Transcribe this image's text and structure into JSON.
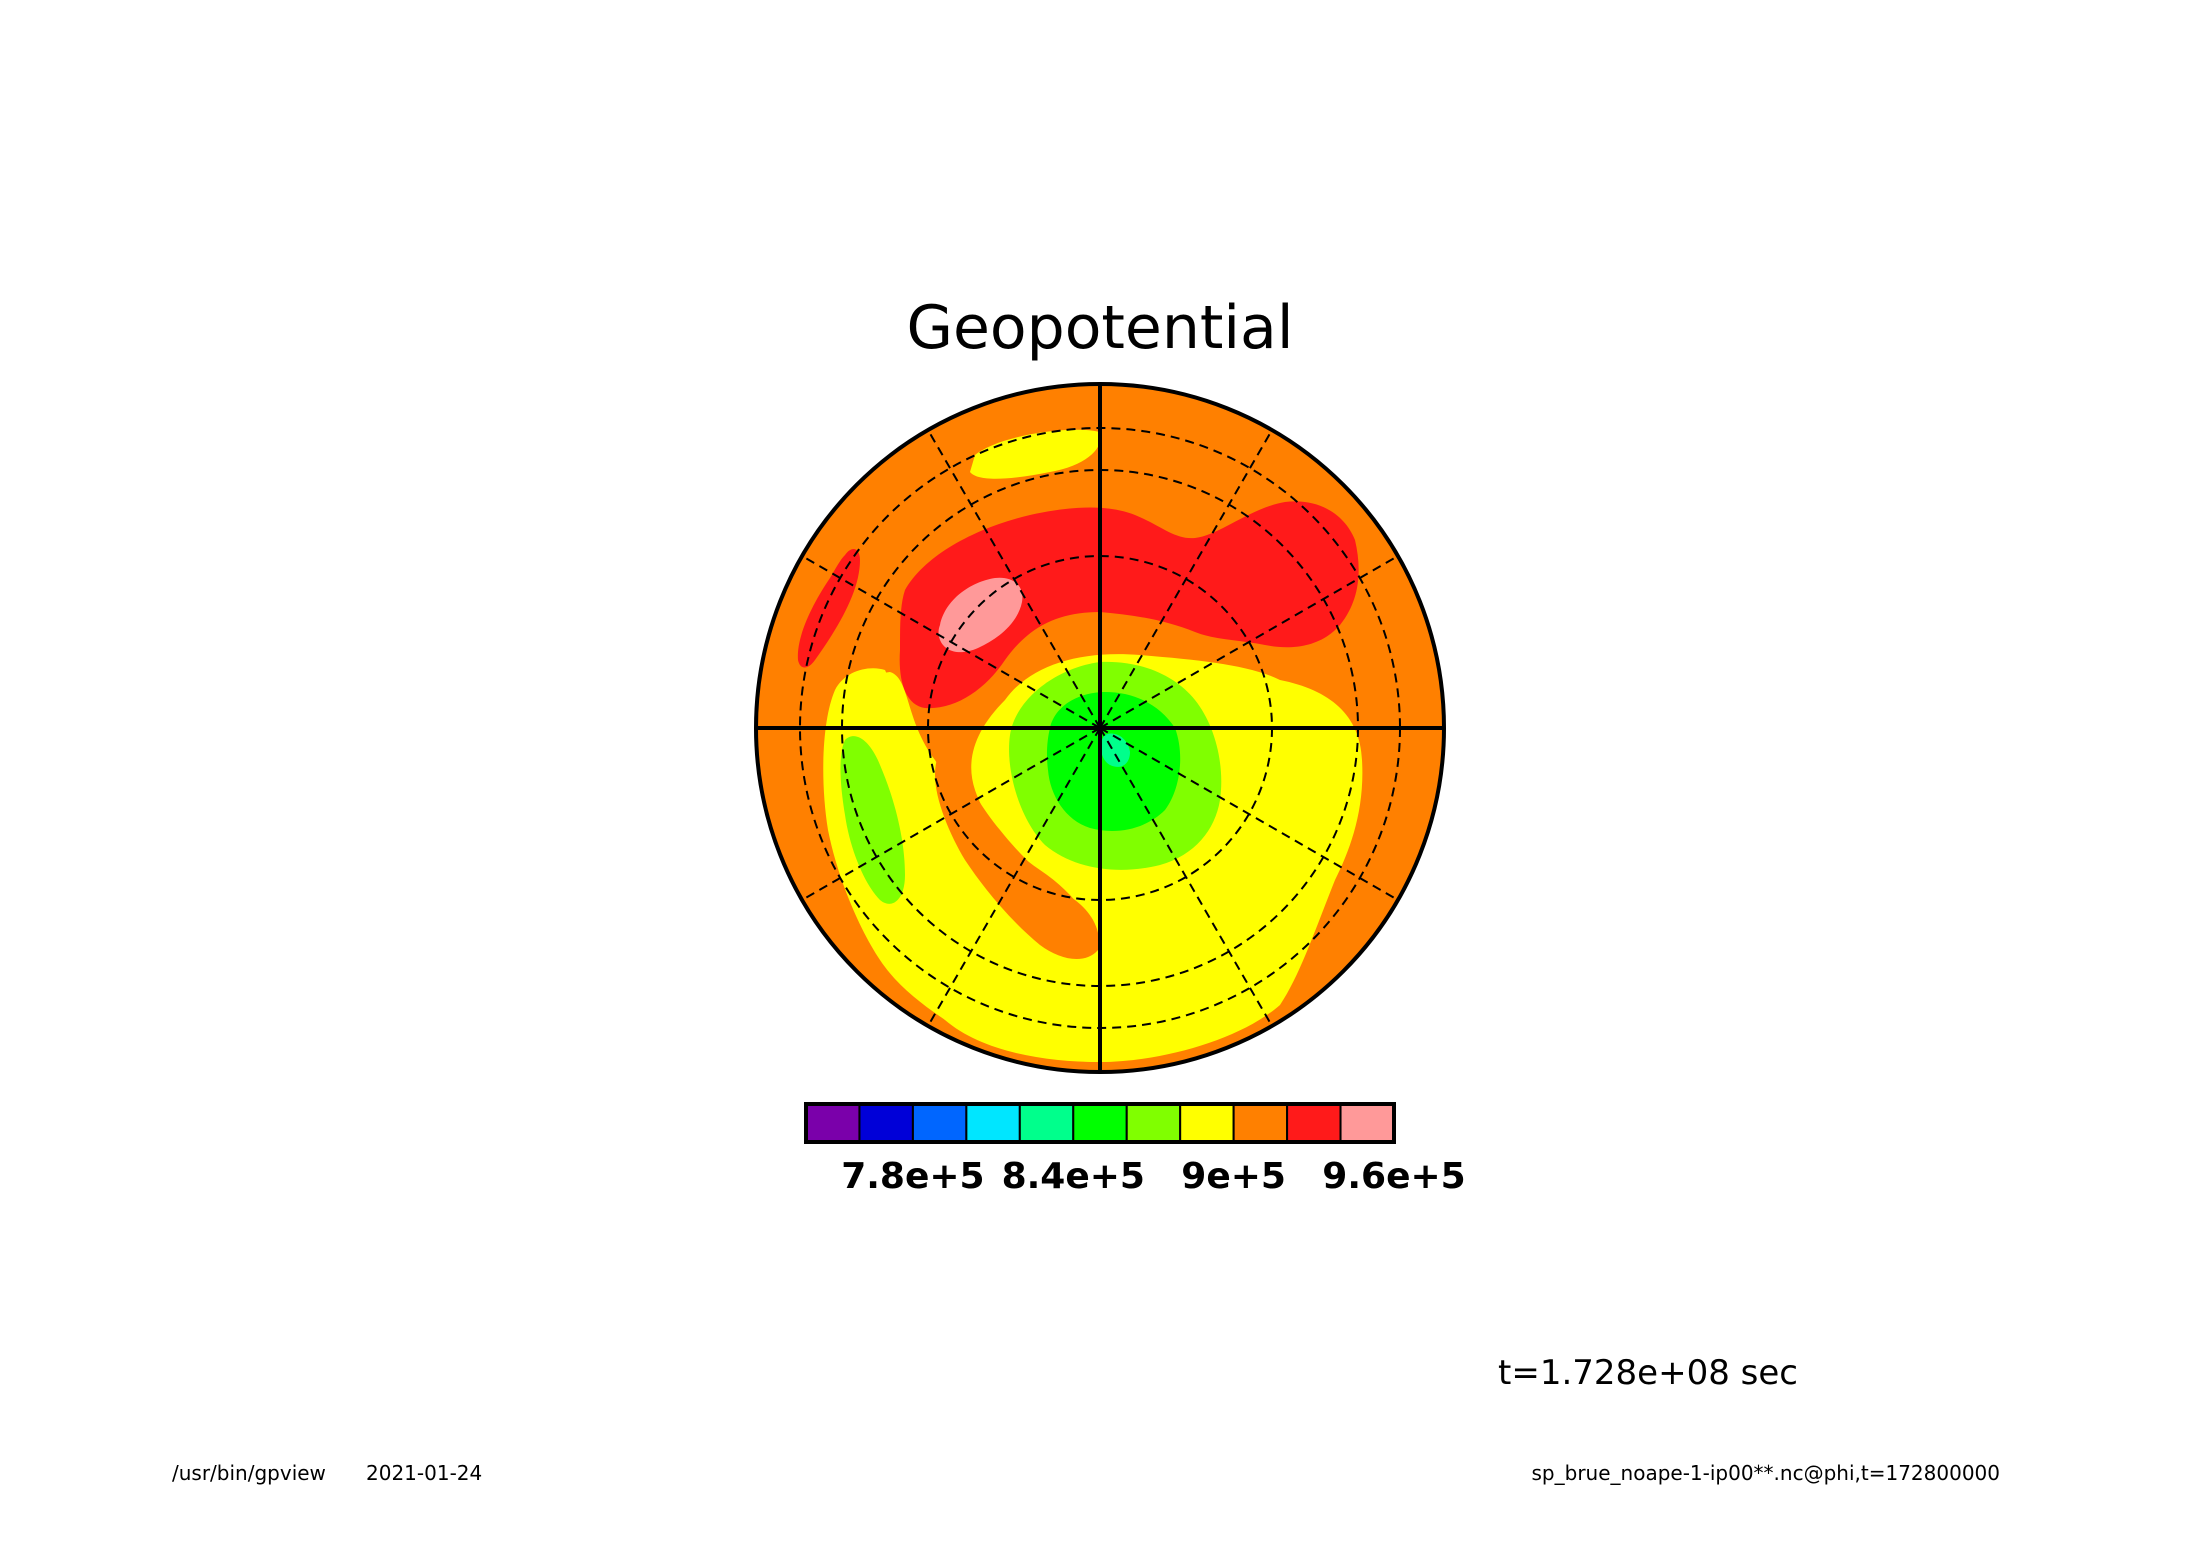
{
  "title": "Geopotential",
  "time_label": "t=1.728e+08 sec",
  "footer": {
    "left_program": "/usr/bin/gpview",
    "left_date": "2021-01-24",
    "right_file": "sp_brue_noape-1-ip00**.nc@phi,t=172800000"
  },
  "colors": {
    "purple": "#7a00aa",
    "blue": "#0000d8",
    "light_blue": "#0066ff",
    "cyan": "#00e6ff",
    "aqua_green": "#00ff8c",
    "green": "#00ff00",
    "yellow_green": "#80ff00",
    "yellow": "#ffff00",
    "orange": "#ff8000",
    "red": "#ff1a1a",
    "pink": "#ff9999"
  },
  "chart_data": {
    "type": "heatmap",
    "projection": "polar stereographic",
    "variable": "Geopotential",
    "colorbar": {
      "levels": 11,
      "colors": [
        "#7a00aa",
        "#0000d8",
        "#0066ff",
        "#00e6ff",
        "#00ff8c",
        "#00ff00",
        "#80ff00",
        "#ffff00",
        "#ff8000",
        "#ff1a1a",
        "#ff9999"
      ],
      "tick_labels": [
        "7.8e+5",
        "8.4e+5",
        "9e+5",
        "9.6e+5"
      ]
    },
    "grid": true,
    "meridian_spacing_deg": 30,
    "latitude_circles": 3
  }
}
